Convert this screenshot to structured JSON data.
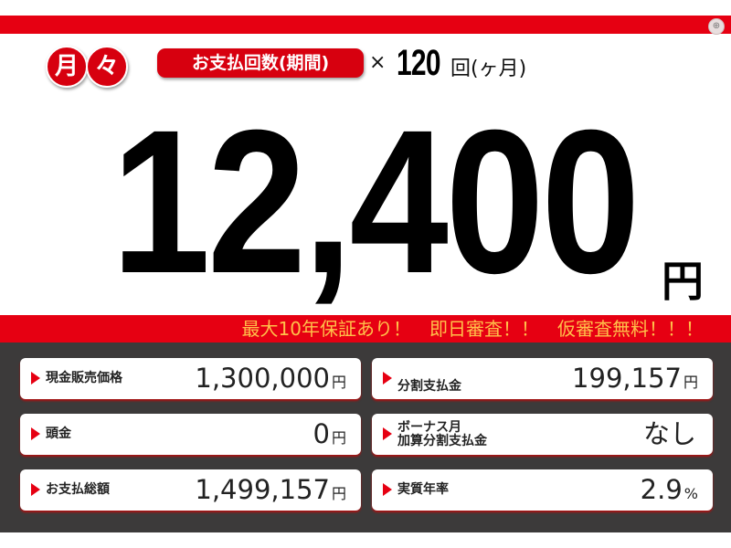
{
  "header": {
    "badge_chars": [
      "月",
      "々"
    ],
    "period_label": "お支払回数(期間)",
    "times": "×",
    "count": "120",
    "count_unit": "回(ヶ月)"
  },
  "monthly": {
    "amount": "12,400",
    "unit": "円"
  },
  "banner": "最大10年保証あり！　即日審査！！　仮審査無料！！！",
  "cards": [
    {
      "label": "現金販売価格",
      "value": "1,300,000",
      "unit": "円"
    },
    {
      "label": "分割支払金",
      "value": "199,157",
      "unit": "円"
    },
    {
      "label": "頭金",
      "value": "0",
      "unit": "円"
    },
    {
      "label": "ボーナス月\n加算分割支払金",
      "value": "なし",
      "unit": ""
    },
    {
      "label": "お支払総額",
      "value": "1,499,157",
      "unit": "円"
    },
    {
      "label": "実質年率",
      "value": "2.9",
      "unit": "%"
    }
  ],
  "colors": {
    "red": "#e60012",
    "banner_text": "#ffc04a",
    "panel": "#3c3a3a"
  },
  "icons": {
    "corner": "zoom-icon"
  }
}
